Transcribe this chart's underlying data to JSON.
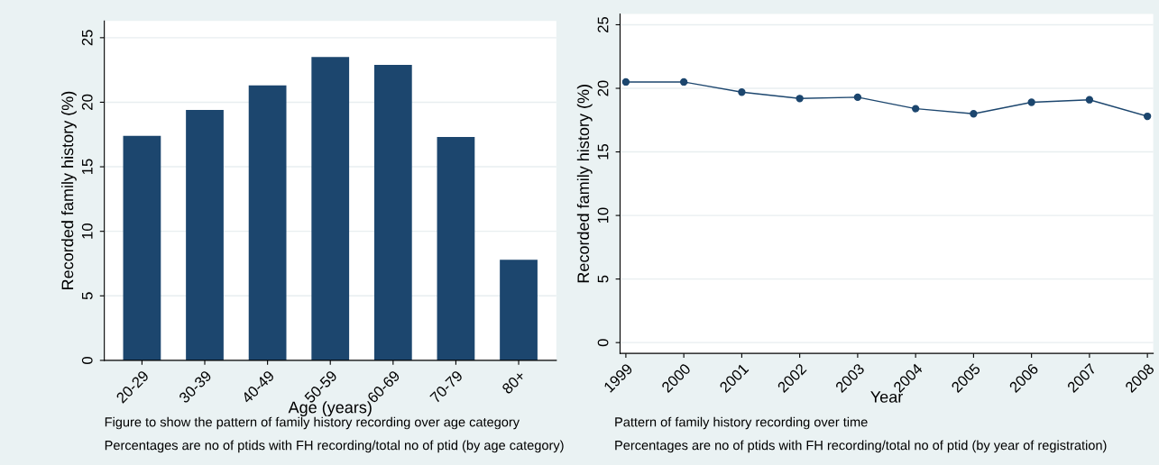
{
  "chart_data": [
    {
      "type": "bar",
      "xlabel": "Age (years)",
      "ylabel": "Recorded family history (%)",
      "categories": [
        "20-29",
        "30-39",
        "40-49",
        "50-59",
        "60-69",
        "70-79",
        "80+"
      ],
      "values": [
        17.4,
        19.4,
        21.3,
        23.5,
        22.9,
        17.3,
        7.8
      ],
      "color": "#1c466e",
      "ylim": [
        0,
        26.3
      ],
      "yticks": [
        0,
        5,
        10,
        15,
        20,
        25
      ],
      "grid": "y",
      "annotations": [
        "Figure to show the pattern of family history recording over age category",
        "Percentages are no of ptids with FH recording/total no of ptid (by age category)"
      ]
    },
    {
      "type": "line",
      "xlabel": "Year",
      "ylabel": "Recorded family history (%)",
      "x": [
        1999,
        2000,
        2001,
        2002,
        2003,
        2004,
        2005,
        2006,
        2007,
        2008
      ],
      "values": [
        20.5,
        20.5,
        19.7,
        19.2,
        19.3,
        18.4,
        18.0,
        18.9,
        19.1,
        17.8
      ],
      "color": "#1c466e",
      "marker": "circle",
      "line_style": "solid",
      "xlim": [
        1998.9,
        2008.1
      ],
      "xticks": [
        1999,
        2000,
        2001,
        2002,
        2003,
        2004,
        2005,
        2006,
        2007,
        2008
      ],
      "ylim": [
        -0.85,
        25.85
      ],
      "yticks": [
        0,
        5,
        10,
        15,
        20,
        25
      ],
      "grid": "y",
      "annotations": [
        "Pattern of family history recording over time",
        "Percentages are no of ptids with FH recording/total no of ptid (by year of registration)"
      ]
    }
  ]
}
